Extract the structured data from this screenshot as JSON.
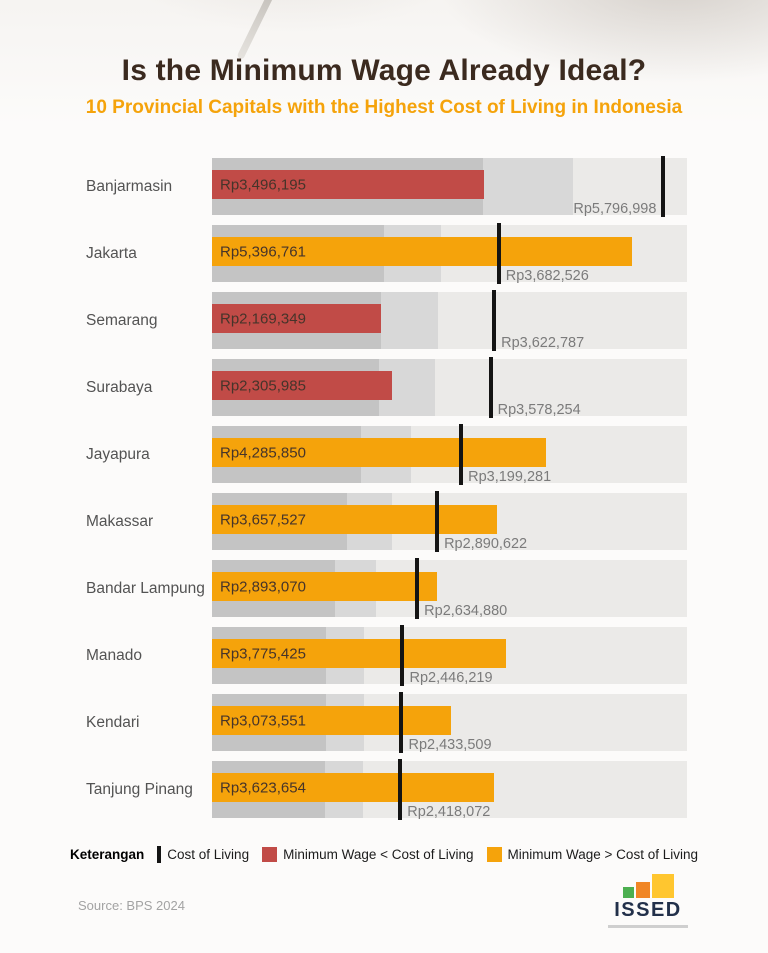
{
  "page": {
    "title": "Is the Minimum Wage Already Ideal?",
    "subtitle": "10 Provincial Capitals with the Highest Cost of Living in Indonesia",
    "source": "Source: BPS 2024",
    "logo_text": "ISSED"
  },
  "legend": {
    "heading": "Keterangan",
    "items": [
      {
        "label": "Cost of Living",
        "swatch": "tick"
      },
      {
        "label": "Minimum Wage < Cost of Living",
        "swatch": "red"
      },
      {
        "label": "Minimum Wage > Cost of Living",
        "swatch": "orange"
      }
    ]
  },
  "colors": {
    "accent_orange": "#F5A30B",
    "wage_above_orange": "#F5A30B",
    "wage_below_red": "#C14B47",
    "cost_tick_black": "#141414",
    "band_dark": "#C4C4C4",
    "band_mid": "#D8D8D8",
    "band_light": "#EBEAE8",
    "title_brown": "#3B2A1F",
    "logo_green": "#4CAF50",
    "logo_orange": "#F08626",
    "logo_yellow": "#FFC62F",
    "logo_navy": "#22304A"
  },
  "chart_data": {
    "type": "bar",
    "style": "bullet",
    "orientation": "horizontal",
    "currency": "IDR (Rp)",
    "axis_max": 6100000,
    "grid": false,
    "legend_position": "bottom",
    "categories": [
      "Banjarmasin",
      "Jakarta",
      "Semarang",
      "Surabaya",
      "Jayapura",
      "Makassar",
      "Bandar Lampung",
      "Manado",
      "Kendari",
      "Tanjung Pinang"
    ],
    "series": [
      {
        "name": "Minimum Wage",
        "values": [
          3496195,
          5396761,
          2169349,
          2305985,
          4285850,
          3657527,
          2893070,
          3775425,
          3073551,
          3623654
        ]
      },
      {
        "name": "Cost of Living",
        "values": [
          5796998,
          3682526,
          3622787,
          3578254,
          3199281,
          2890622,
          2634880,
          2446219,
          2433509,
          2418072
        ]
      }
    ],
    "rows": [
      {
        "city": "Banjarmasin",
        "min_wage": 3496195,
        "min_wage_label": "Rp3,496,195",
        "cost_of_living": 5796998,
        "cost_of_living_label": "Rp5,796,998",
        "wage_vs_col": "below"
      },
      {
        "city": "Jakarta",
        "min_wage": 5396761,
        "min_wage_label": "Rp5,396,761",
        "cost_of_living": 3682526,
        "cost_of_living_label": "Rp3,682,526",
        "wage_vs_col": "above"
      },
      {
        "city": "Semarang",
        "min_wage": 2169349,
        "min_wage_label": "Rp2,169,349",
        "cost_of_living": 3622787,
        "cost_of_living_label": "Rp3,622,787",
        "wage_vs_col": "below"
      },
      {
        "city": "Surabaya",
        "min_wage": 2305985,
        "min_wage_label": "Rp2,305,985",
        "cost_of_living": 3578254,
        "cost_of_living_label": "Rp3,578,254",
        "wage_vs_col": "below"
      },
      {
        "city": "Jayapura",
        "min_wage": 4285850,
        "min_wage_label": "Rp4,285,850",
        "cost_of_living": 3199281,
        "cost_of_living_label": "Rp3,199,281",
        "wage_vs_col": "above"
      },
      {
        "city": "Makassar",
        "min_wage": 3657527,
        "min_wage_label": "Rp3,657,527",
        "cost_of_living": 2890622,
        "cost_of_living_label": "Rp2,890,622",
        "wage_vs_col": "above"
      },
      {
        "city": "Bandar Lampung",
        "min_wage": 2893070,
        "min_wage_label": "Rp2,893,070",
        "cost_of_living": 2634880,
        "cost_of_living_label": "Rp2,634,880",
        "wage_vs_col": "above"
      },
      {
        "city": "Manado",
        "min_wage": 3775425,
        "min_wage_label": "Rp3,775,425",
        "cost_of_living": 2446219,
        "cost_of_living_label": "Rp2,446,219",
        "wage_vs_col": "above"
      },
      {
        "city": "Kendari",
        "min_wage": 3073551,
        "min_wage_label": "Rp3,073,551",
        "cost_of_living": 2433509,
        "cost_of_living_label": "Rp2,433,509",
        "wage_vs_col": "above"
      },
      {
        "city": "Tanjung Pinang",
        "min_wage": 3623654,
        "min_wage_label": "Rp3,623,654",
        "cost_of_living": 2418072,
        "cost_of_living_label": "Rp2,418,072",
        "wage_vs_col": "above"
      }
    ]
  }
}
